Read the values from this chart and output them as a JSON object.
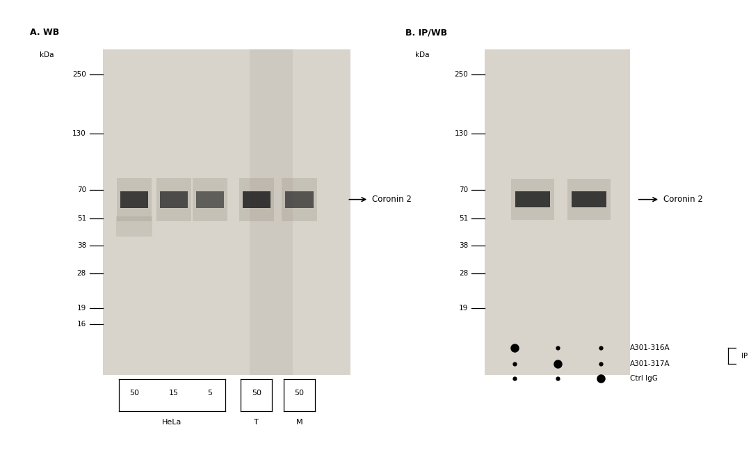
{
  "bg_color": "#f0eeea",
  "white_color": "#ffffff",
  "panel_bg": "#d8d4cc",
  "band_color": "#2a2a2a",
  "panel_A_title": "A. WB",
  "panel_B_title": "B. IP/WB",
  "kda_label": "kDa",
  "mw_markers": [
    250,
    130,
    70,
    51,
    38,
    28,
    19,
    16
  ],
  "mw_markers_B": [
    250,
    130,
    70,
    51,
    38,
    28,
    19
  ],
  "coronin2_label": "Coronin 2",
  "panel_A_lane_labels": [
    "50",
    "15",
    "5",
    "50",
    "50"
  ],
  "panel_B_ip_labels": [
    "A301-316A",
    "A301-317A",
    "Ctrl IgG"
  ],
  "panel_B_ip_group": "IP",
  "dot_large": 8,
  "dot_small": 3.5
}
